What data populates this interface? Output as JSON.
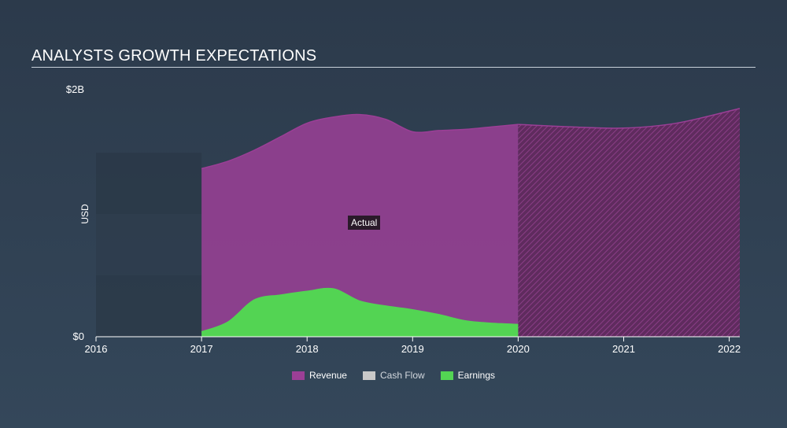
{
  "header": {
    "title": "ANALYSTS GROWTH EXPECTATIONS"
  },
  "annotations": {
    "actual_label": "Actual"
  },
  "colors": {
    "revenue": "#9b3f96",
    "cash_flow": "#c8c8c8",
    "earnings": "#53d453",
    "background": "#2f3e4f",
    "forecast_hatch": "#6e2d6a"
  },
  "legend": [
    {
      "name": "Revenue",
      "color": "#9b3f96"
    },
    {
      "name": "Cash Flow",
      "color": "#c8c8c8"
    },
    {
      "name": "Earnings",
      "color": "#53d453"
    }
  ],
  "chart_data": {
    "type": "area",
    "title": "ANALYSTS GROWTH EXPECTATIONS",
    "ylabel": "USD",
    "ylim": [
      0,
      2.0
    ],
    "xlim": [
      2016,
      2022.1
    ],
    "y_ticks": [
      {
        "value": 0,
        "label": "$0"
      },
      {
        "value": 2.0,
        "label": "$2B"
      }
    ],
    "x_ticks": [
      {
        "value": 2016,
        "label": "2016"
      },
      {
        "value": 2017,
        "label": "2017"
      },
      {
        "value": 2018,
        "label": "2018"
      },
      {
        "value": 2019,
        "label": "2019"
      },
      {
        "value": 2020,
        "label": "2020"
      },
      {
        "value": 2021,
        "label": "2021"
      },
      {
        "value": 2022,
        "label": "2022"
      }
    ],
    "actual_end": 2020,
    "legend_position": "bottom",
    "series": [
      {
        "name": "Revenue",
        "color": "#9b3f96",
        "x": [
          2017.0,
          2017.25,
          2017.5,
          2017.75,
          2018.0,
          2018.25,
          2018.5,
          2018.75,
          2019.0,
          2019.25,
          2019.5,
          2019.75,
          2020.0,
          2020.5,
          2021.0,
          2021.5,
          2022.1
        ],
        "y": [
          1.37,
          1.43,
          1.52,
          1.63,
          1.74,
          1.79,
          1.81,
          1.77,
          1.67,
          1.68,
          1.69,
          1.71,
          1.73,
          1.71,
          1.7,
          1.74,
          1.86
        ]
      },
      {
        "name": "Earnings",
        "color": "#53d453",
        "x": [
          2017.0,
          2017.25,
          2017.5,
          2017.75,
          2018.0,
          2018.25,
          2018.5,
          2018.75,
          2019.0,
          2019.25,
          2019.5,
          2019.75,
          2020.0
        ],
        "y": [
          0.04,
          0.12,
          0.3,
          0.34,
          0.37,
          0.39,
          0.29,
          0.25,
          0.22,
          0.18,
          0.13,
          0.11,
          0.1
        ]
      },
      {
        "name": "Cash Flow",
        "color": "#c8c8c8",
        "x": [],
        "y": []
      }
    ]
  }
}
